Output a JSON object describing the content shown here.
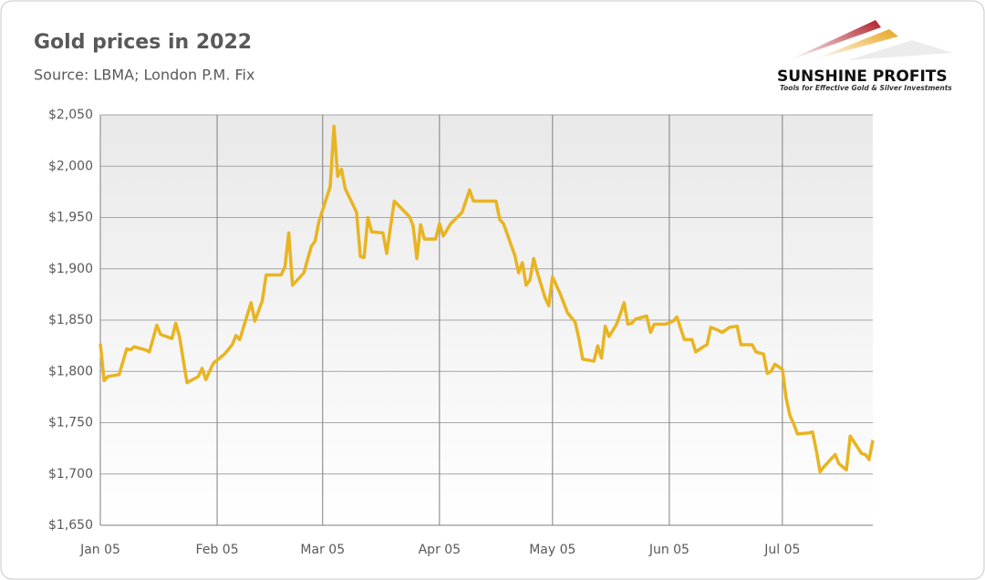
{
  "chart_data": {
    "type": "line",
    "title": "Gold prices in 2022",
    "subtitle": "Source: LBMA; London P.M. Fix",
    "color": "#e8b420",
    "grid": true,
    "x": [
      "2022-01-05",
      "2022-01-06",
      "2022-01-07",
      "2022-01-10",
      "2022-01-12",
      "2022-01-13",
      "2022-01-14",
      "2022-01-17",
      "2022-01-18",
      "2022-01-20",
      "2022-01-21",
      "2022-01-24",
      "2022-01-25",
      "2022-01-26",
      "2022-01-28",
      "2022-01-31",
      "2022-02-01",
      "2022-02-02",
      "2022-02-04",
      "2022-02-07",
      "2022-02-09",
      "2022-02-10",
      "2022-02-11",
      "2022-02-14",
      "2022-02-15",
      "2022-02-17",
      "2022-02-18",
      "2022-02-22",
      "2022-02-23",
      "2022-02-24",
      "2022-02-25",
      "2022-02-28",
      "2022-03-01",
      "2022-03-02",
      "2022-03-03",
      "2022-03-04",
      "2022-03-07",
      "2022-03-08",
      "2022-03-09",
      "2022-03-10",
      "2022-03-11",
      "2022-03-14",
      "2022-03-15",
      "2022-03-16",
      "2022-03-17",
      "2022-03-18",
      "2022-03-21",
      "2022-03-22",
      "2022-03-24",
      "2022-03-28",
      "2022-03-29",
      "2022-03-30",
      "2022-03-31",
      "2022-04-01",
      "2022-04-04",
      "2022-04-05",
      "2022-04-06",
      "2022-04-08",
      "2022-04-11",
      "2022-04-12",
      "2022-04-13",
      "2022-04-14",
      "2022-04-18",
      "2022-04-20",
      "2022-04-21",
      "2022-04-22",
      "2022-04-25",
      "2022-04-26",
      "2022-04-27",
      "2022-04-28",
      "2022-04-29",
      "2022-04-30",
      "2022-05-01",
      "2022-05-03",
      "2022-05-04",
      "2022-05-05",
      "2022-05-07",
      "2022-05-09",
      "2022-05-11",
      "2022-05-12",
      "2022-05-13",
      "2022-05-16",
      "2022-05-17",
      "2022-05-18",
      "2022-05-19",
      "2022-05-20",
      "2022-05-22",
      "2022-05-23",
      "2022-05-24",
      "2022-05-25",
      "2022-05-26",
      "2022-05-27",
      "2022-05-30",
      "2022-05-31",
      "2022-06-01",
      "2022-06-04",
      "2022-06-06",
      "2022-06-07",
      "2022-06-09",
      "2022-06-11",
      "2022-06-12",
      "2022-06-14",
      "2022-06-15",
      "2022-06-16",
      "2022-06-18",
      "2022-06-19",
      "2022-06-21",
      "2022-06-23",
      "2022-06-24",
      "2022-06-27",
      "2022-06-28",
      "2022-06-30",
      "2022-07-01",
      "2022-07-02",
      "2022-07-03",
      "2022-07-05",
      "2022-07-06",
      "2022-07-07",
      "2022-07-08",
      "2022-07-09",
      "2022-07-12",
      "2022-07-13",
      "2022-07-14",
      "2022-07-15",
      "2022-07-16",
      "2022-07-19",
      "2022-07-20",
      "2022-07-22",
      "2022-07-23",
      "2022-07-26",
      "2022-07-27",
      "2022-07-28",
      "2022-07-29"
    ],
    "values": [
      1827,
      1791,
      1795,
      1797,
      1822,
      1821,
      1824,
      1821,
      1819,
      1845,
      1836,
      1832,
      1847,
      1834,
      1789,
      1795,
      1803,
      1792,
      1808,
      1817,
      1826,
      1835,
      1831,
      1867,
      1849,
      1869,
      1894,
      1894,
      1902,
      1935,
      1884,
      1896,
      1909,
      1922,
      1927,
      1946,
      1980,
      2039,
      1990,
      1997,
      1978,
      1955,
      1912,
      1911,
      1950,
      1936,
      1935,
      1915,
      1966,
      1951,
      1942,
      1910,
      1943,
      1929,
      1929,
      1944,
      1932,
      1944,
      1955,
      1966,
      1977,
      1966,
      1966,
      1966,
      1948,
      1944,
      1913,
      1896,
      1906,
      1884,
      1889,
      1910,
      1896,
      1872,
      1864,
      1892,
      1876,
      1857,
      1848,
      1832,
      1812,
      1810,
      1825,
      1813,
      1844,
      1834,
      1846,
      1856,
      1867,
      1846,
      1847,
      1851,
      1854,
      1838,
      1846,
      1846,
      1849,
      1853,
      1831,
      1831,
      1819,
      1824,
      1826,
      1843,
      1840,
      1838,
      1843,
      1844,
      1826,
      1826,
      1819,
      1817,
      1798,
      1800,
      1807,
      1802,
      1774,
      1757,
      1749,
      1739,
      1740,
      1741,
      1723,
      1702,
      1707,
      1719,
      1710,
      1704,
      1737,
      1720,
      1719,
      1714,
      1733
    ],
    "xlim": [
      "2022-01-05",
      "2022-07-29"
    ],
    "xticks": [
      {
        "value": "2022-01-05",
        "label": "Jan 05"
      },
      {
        "value": "2022-02-05",
        "label": "Feb 05"
      },
      {
        "value": "2022-03-05",
        "label": "Mar 05"
      },
      {
        "value": "2022-04-05",
        "label": "Apr 05"
      },
      {
        "value": "2022-05-05",
        "label": "May 05"
      },
      {
        "value": "2022-06-05",
        "label": "Jun 05"
      },
      {
        "value": "2022-07-05",
        "label": "Jul 05"
      }
    ],
    "ylim": [
      1650,
      2050
    ],
    "yticks": [
      {
        "value": 1650,
        "label": "$1,650"
      },
      {
        "value": 1700,
        "label": "$1,700"
      },
      {
        "value": 1750,
        "label": "$1,750"
      },
      {
        "value": 1800,
        "label": "$1,800"
      },
      {
        "value": 1850,
        "label": "$1,850"
      },
      {
        "value": 1900,
        "label": "$1,900"
      },
      {
        "value": 1950,
        "label": "$1,950"
      },
      {
        "value": 2000,
        "label": "$2,000"
      },
      {
        "value": 2050,
        "label": "$2,050"
      }
    ]
  },
  "logo": {
    "name": "SUNSHINE PROFITS",
    "tagline": "Tools for Effective Gold & Silver Investments"
  }
}
